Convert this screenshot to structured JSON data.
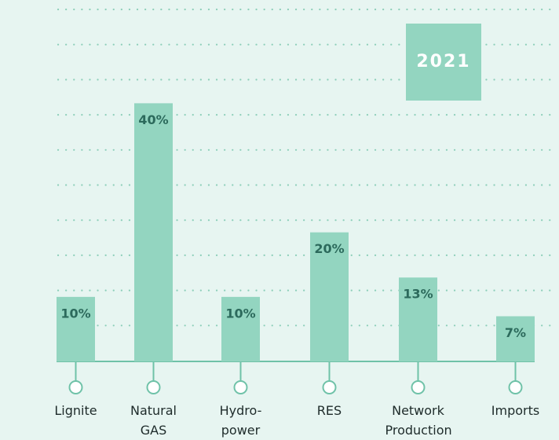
{
  "chart_data": {
    "type": "bar",
    "title": "2021",
    "categories": [
      "Lignite",
      "Natural GAS",
      "Hydro-power",
      "RES",
      "Network Production",
      "Imports"
    ],
    "values": [
      10,
      40,
      10,
      20,
      13,
      7
    ],
    "value_labels": [
      "10%",
      "40%",
      "10%",
      "20%",
      "13%",
      "7%"
    ],
    "color": "#93d5c0",
    "ylim": [
      0,
      56
    ]
  }
}
